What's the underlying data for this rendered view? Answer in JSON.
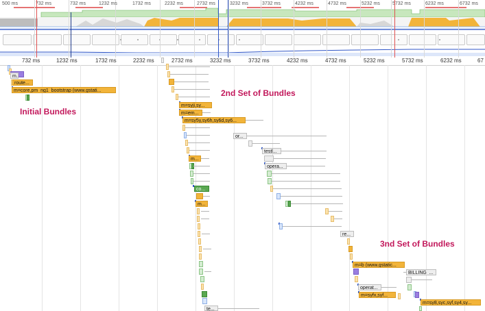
{
  "overview": {
    "ticks": [
      "500 ms",
      "732 ms",
      "1232 ms",
      "1732 ms",
      "2232 ms",
      "2732 ms",
      "3232 ms",
      "3732 ms",
      "4232 ms",
      "4732 ms",
      "5232 ms",
      "5732 ms",
      "6232 ms",
      "6732 ms"
    ]
  },
  "ruler": {
    "ticks": [
      "732 ms",
      "1232 ms",
      "1732 ms",
      "2232 ms",
      "2732 ms",
      "3232 ms",
      "3732 ms",
      "4232 ms",
      "4732 ms",
      "5232 ms",
      "5732 ms",
      "6232 ms",
      "67"
    ]
  },
  "annotations": {
    "initial": "Initial Bundles",
    "second": "2nd Set of Bundles",
    "third": "3nd Set of Bundles"
  },
  "bars": {
    "m1": "m...",
    "route": "route...",
    "bootstrap": "m=core,pm_ng1_bootstrap (www.gstati...",
    "syji": "m=syji,sy...",
    "em": "m=em...",
    "sy5y": "m=sy5y,sy6h,sy6d,sy6...",
    "or": "or...",
    "testl": "testl...",
    "opera": "opera...",
    "m2": "m...",
    "co": "co...",
    "m3": "m...",
    "re": "re...",
    "mb": "m=b (www.gstatic...",
    "billing": "BILLING_...",
    "operat": "operat...",
    "syfx": "m=syfx,syf...",
    "sy8": "m=sy8,syc,syf,sy4,sy...",
    "te": "te..."
  },
  "colors": {
    "orange": "#f2b43a",
    "green": "#5aa852",
    "purple": "#9a7ee0",
    "annotation": "#c2185b"
  }
}
